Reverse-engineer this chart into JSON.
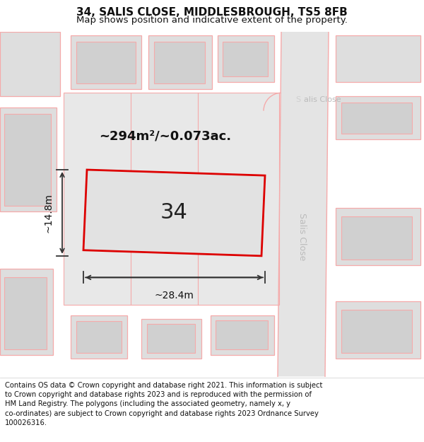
{
  "title": "34, SALIS CLOSE, MIDDLESBROUGH, TS5 8FB",
  "subtitle": "Map shows position and indicative extent of the property.",
  "footer": "Contains OS data © Crown copyright and database right 2021. This information is subject\nto Crown copyright and database rights 2023 and is reproduced with the permission of\nHM Land Registry. The polygons (including the associated geometry, namely x, y\nco-ordinates) are subject to Crown copyright and database rights 2023 Ordnance Survey\n100026316.",
  "area_label": "~294m²/~0.073ac.",
  "width_label": "~28.4m",
  "height_label": "~14.8m",
  "plot_number": "34",
  "map_bg": "#eeeeee",
  "plot_fill": "#e2e2e2",
  "plot_edge": "#dd0000",
  "outline_pink": "#f5aaaa",
  "building_fill": "#dedede",
  "road_fill": "#e4e4e4",
  "title_fontsize": 11,
  "subtitle_fontsize": 9.5,
  "footer_fontsize": 7.2,
  "road_text_color": "#bbbbbb",
  "dim_color": "#333333",
  "label_color": "#111111"
}
